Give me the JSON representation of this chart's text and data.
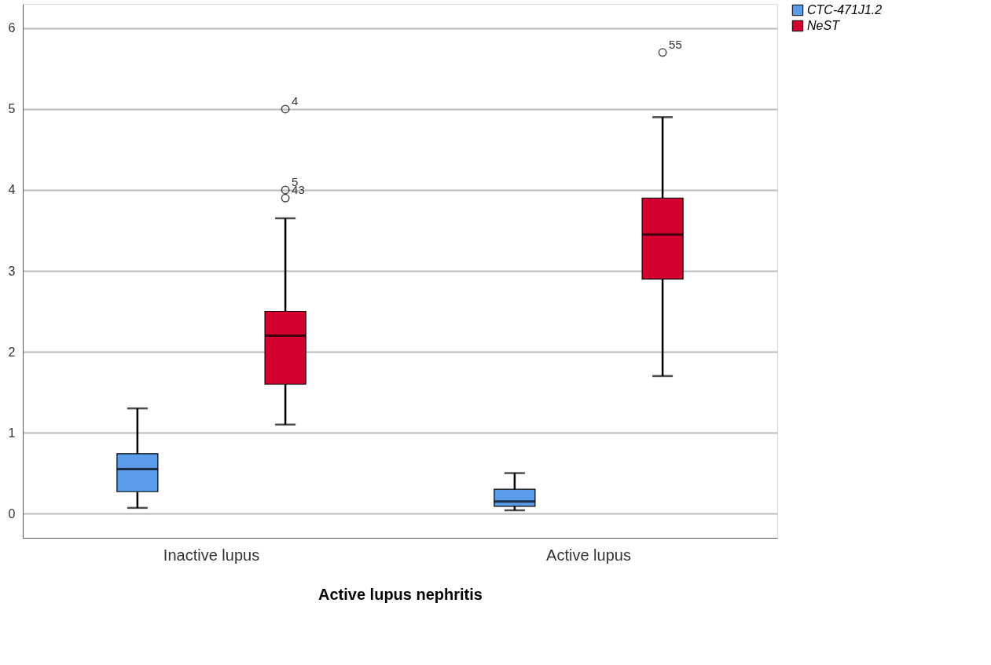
{
  "chart_data": {
    "type": "box",
    "xlabel": "Active lupus nephritis",
    "categories": [
      "Inactive lupus",
      "Active lupus"
    ],
    "series": [
      {
        "name": "CTC-471J1.2",
        "color": "#5a9bea",
        "boxes": [
          {
            "low": 0.07,
            "q1": 0.27,
            "median": 0.55,
            "q3": 0.74,
            "high": 1.3
          },
          {
            "low": 0.04,
            "q1": 0.09,
            "median": 0.15,
            "q3": 0.3,
            "high": 0.5
          }
        ]
      },
      {
        "name": "NeST",
        "color": "#d60030",
        "boxes": [
          {
            "low": 1.1,
            "q1": 1.6,
            "median": 2.2,
            "q3": 2.5,
            "high": 3.65,
            "outliers": [
              5.0,
              4.0,
              3.9
            ]
          },
          {
            "low": 1.7,
            "q1": 2.9,
            "median": 3.45,
            "q3": 3.9,
            "high": 4.9,
            "outliers": [
              5.7
            ]
          }
        ]
      }
    ],
    "annotations": [
      "4",
      "5",
      "43",
      "55"
    ],
    "ylim": [
      -0.3,
      6.3
    ],
    "yticks": [
      0,
      1,
      2,
      3,
      4,
      5,
      6
    ],
    "grid": "y",
    "legend": "top right"
  }
}
